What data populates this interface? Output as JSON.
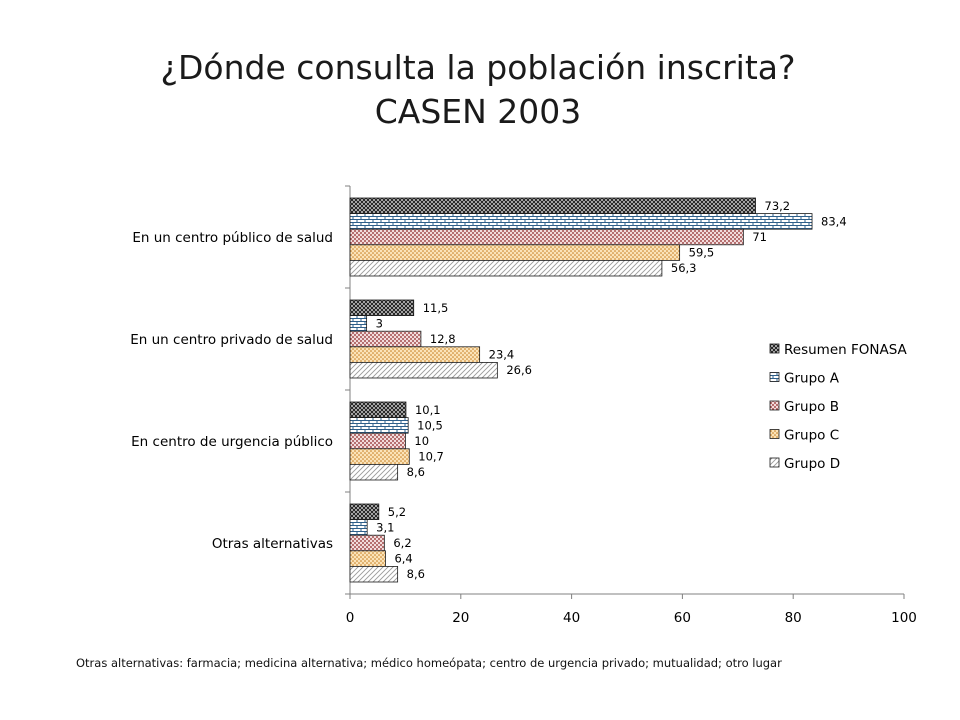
{
  "page": {
    "title_line1": "¿Dónde consulta la población inscrita?",
    "title_line2": "CASEN 2003",
    "footnote": "Otras alternativas: farmacia; medicina alternativa; médico homeópata; centro de urgencia privado; mutualidad; otro lugar"
  },
  "chart_data": {
    "type": "bar",
    "orientation": "horizontal",
    "title": "¿Dónde consulta la población inscrita? CASEN 2003",
    "xlabel": "",
    "ylabel": "",
    "xlim": [
      0,
      100
    ],
    "xticks": [
      0,
      20,
      40,
      60,
      80,
      100
    ],
    "grid": false,
    "legend_position": "right",
    "categories": [
      "En un centro público de salud",
      "En un centro privado de salud",
      "En centro de urgencia público",
      "Otras alternativas"
    ],
    "series": [
      {
        "name": "Resumen FONASA",
        "pattern": "crosshatch-dark",
        "values": [
          73.2,
          11.5,
          10.1,
          5.2
        ],
        "labels": [
          "73,2",
          "11,5",
          "10,1",
          "5,2"
        ]
      },
      {
        "name": "Grupo A",
        "pattern": "brick-blue",
        "values": [
          83.4,
          3,
          10.5,
          3.1
        ],
        "labels": [
          "83,4",
          "3",
          "10,5",
          "3,1"
        ]
      },
      {
        "name": "Grupo B",
        "pattern": "dots-red",
        "values": [
          71,
          12.8,
          10,
          6.2
        ],
        "labels": [
          "71",
          "12,8",
          "10",
          "6,2"
        ]
      },
      {
        "name": "Grupo C",
        "pattern": "dots-orange",
        "values": [
          59.5,
          23.4,
          10.7,
          6.4
        ],
        "labels": [
          "59,5",
          "23,4",
          "10,7",
          "6,4"
        ]
      },
      {
        "name": "Grupo D",
        "pattern": "diagonal-light",
        "values": [
          56.3,
          26.6,
          8.6,
          8.6
        ],
        "labels": [
          "56,3",
          "26,6",
          "8,6",
          "8,6"
        ]
      }
    ]
  }
}
